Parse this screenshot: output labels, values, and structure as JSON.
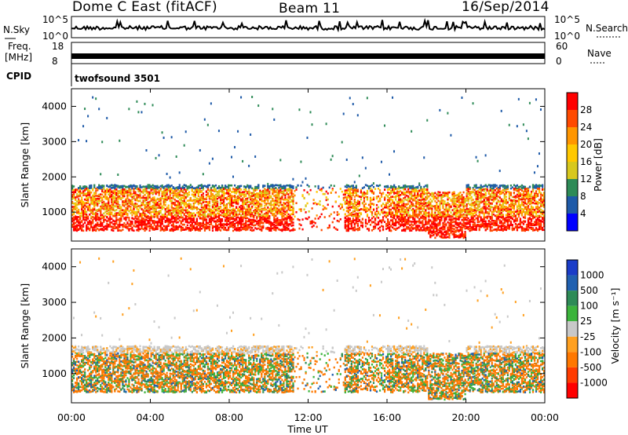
{
  "header": {
    "title": "Dome C East (fitACF)",
    "beam": "Beam 11",
    "date": "16/Sep/2014"
  },
  "top_panels": {
    "nsky_label": "N.Sky",
    "nsky_ticks": [
      "10^5",
      "10^0"
    ],
    "nsearch_label": "N.Search",
    "nsearch_ticks": [
      "10^5",
      "10^0"
    ],
    "freq_label": "Freq.",
    "freq_unit": "[MHz]",
    "freq_ticks": [
      "18",
      "8"
    ],
    "nave_label": "Nave",
    "nave_ticks": [
      "60",
      "0"
    ],
    "cpid_label": "CPID",
    "cpid_value": "twofsound 3501"
  },
  "chart_data": [
    {
      "type": "heatmap",
      "name": "power",
      "ylabel": "Slant Range [km]",
      "ylim": [
        180,
        4500
      ],
      "yticks": [
        "1000",
        "2000",
        "3000",
        "4000"
      ],
      "colorbar_label": "Power [dB]",
      "colorbar_ticks": [
        "28",
        "24",
        "20",
        "16",
        "12",
        "8",
        "4"
      ],
      "colors": [
        "#ff0000",
        "#ff4a00",
        "#ff9600",
        "#ffc800",
        "#d7c81e",
        "#2e8b57",
        "#1e5aa8",
        "#0000ff"
      ]
    },
    {
      "type": "heatmap",
      "name": "velocity",
      "ylabel": "Slant Range [km]",
      "ylim": [
        180,
        4500
      ],
      "yticks": [
        "1000",
        "2000",
        "3000",
        "4000"
      ],
      "colorbar_label": "Velocity [m s⁻¹]",
      "colorbar_ticks": [
        "1000",
        "500",
        "100",
        "25",
        "-25",
        "-100",
        "-500",
        "-1000"
      ],
      "colors": [
        "#1a3cc8",
        "#2060b0",
        "#2e8b57",
        "#3cb43c",
        "#c8c8c8",
        "#ffa020",
        "#ff7800",
        "#ff3c00",
        "#ff0000"
      ]
    }
  ],
  "xaxis": {
    "label": "Time UT",
    "ticks": [
      "00:00",
      "04:00",
      "08:00",
      "12:00",
      "16:00",
      "20:00",
      "00:00"
    ],
    "range_hours": [
      0,
      24
    ]
  }
}
